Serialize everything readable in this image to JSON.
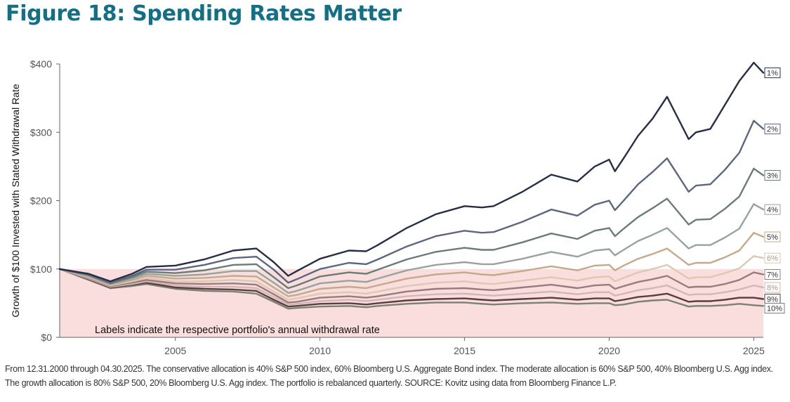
{
  "figure": {
    "title": "Figure 18: Spending Rates Matter",
    "footnote": "From 12.31.2000 through 04.30.2025. The conservative allocation is 40% S&P 500 index, 60% Bloomberg U.S. Aggregate Bond index. The moderate allocation is 60% S&P 500, 40% Bloomberg U.S. Agg index. The growth allocation is 80% S&P 500, 20% Bloomberg U.S. Agg index. The portfolio is rebalanced quarterly. SOURCE: Kovitz using data from Bloomberg Finance L.P."
  },
  "chart_data": {
    "type": "line",
    "title": "Figure 18: Spending Rates Matter",
    "xlabel": "",
    "ylabel": "Growth of $100 Invested with Stated Withdrawal Rate",
    "xlim": [
      2001.0,
      2025.33
    ],
    "ylim": [
      0,
      400
    ],
    "x_ticks": [
      "2005",
      "2010",
      "2015",
      "2020",
      "2025"
    ],
    "y_ticks": [
      "$0",
      "$100",
      "$200",
      "$300",
      "$400"
    ],
    "grid": false,
    "shaded_region": {
      "from": 0,
      "to": 100,
      "color": "#f9dedd"
    },
    "annotation": "Labels indicate the respective portfolio's annual withdrawal rate",
    "x": [
      2001.0,
      2002.0,
      2002.75,
      2003.5,
      2004.0,
      2005.0,
      2006.0,
      2007.0,
      2007.8,
      2008.4,
      2008.9,
      2009.2,
      2010.0,
      2011.0,
      2011.6,
      2012.0,
      2013.0,
      2014.0,
      2015.0,
      2015.6,
      2016.0,
      2017.0,
      2018.0,
      2018.9,
      2019.5,
      2020.0,
      2020.2,
      2020.5,
      2021.0,
      2021.5,
      2022.0,
      2022.75,
      2023.0,
      2023.5,
      2024.0,
      2024.5,
      2025.0,
      2025.33
    ],
    "series": [
      {
        "name": "1%",
        "color": "#252e45",
        "values": [
          100,
          93,
          82,
          93,
          103,
          105,
          114,
          127,
          130,
          110,
          90,
          97,
          115,
          127,
          126,
          135,
          160,
          180,
          192,
          190,
          192,
          213,
          238,
          228,
          250,
          260,
          243,
          262,
          295,
          320,
          352,
          290,
          300,
          305,
          340,
          375,
          402,
          387
        ]
      },
      {
        "name": "2%",
        "color": "#5c6680",
        "values": [
          100,
          92,
          80,
          90,
          99,
          99,
          106,
          116,
          118,
          99,
          80,
          85,
          100,
          109,
          107,
          114,
          133,
          148,
          156,
          153,
          154,
          169,
          187,
          178,
          194,
          200,
          186,
          200,
          224,
          242,
          262,
          213,
          222,
          224,
          245,
          270,
          317,
          305
        ]
      },
      {
        "name": "3%",
        "color": "#6b7c78",
        "values": [
          100,
          91,
          79,
          88,
          96,
          94,
          98,
          106,
          107,
          88,
          72,
          76,
          89,
          95,
          93,
          99,
          114,
          125,
          131,
          128,
          128,
          139,
          152,
          144,
          156,
          160,
          148,
          159,
          176,
          189,
          203,
          165,
          172,
          173,
          188,
          206,
          247,
          237
        ]
      },
      {
        "name": "4%",
        "color": "#97a49e",
        "values": [
          100,
          90,
          78,
          86,
          93,
          90,
          92,
          97,
          97,
          80,
          65,
          68,
          79,
          83,
          81,
          86,
          98,
          106,
          110,
          107,
          107,
          115,
          125,
          118,
          127,
          129,
          120,
          128,
          141,
          150,
          160,
          130,
          135,
          135,
          146,
          159,
          195,
          187
        ]
      },
      {
        "name": "5%",
        "color": "#c4aa8a",
        "values": [
          100,
          89,
          77,
          84,
          90,
          86,
          87,
          90,
          89,
          73,
          60,
          62,
          71,
          74,
          72,
          76,
          86,
          92,
          95,
          92,
          91,
          97,
          104,
          98,
          105,
          106,
          98,
          105,
          115,
          122,
          130,
          106,
          109,
          109,
          117,
          127,
          153,
          147
        ]
      },
      {
        "name": "6%",
        "color": "#dbc9b2",
        "values": [
          100,
          88,
          76,
          82,
          87,
          82,
          82,
          84,
          82,
          67,
          55,
          57,
          64,
          66,
          64,
          67,
          75,
          80,
          82,
          79,
          78,
          83,
          88,
          83,
          88,
          89,
          82,
          87,
          95,
          100,
          106,
          86,
          88,
          88,
          94,
          101,
          119,
          116
        ]
      },
      {
        "name": "7%",
        "color": "#9a7b7d",
        "values": [
          100,
          87,
          75,
          80,
          84,
          79,
          78,
          79,
          77,
          63,
          51,
          52,
          58,
          60,
          58,
          60,
          67,
          71,
          72,
          70,
          69,
          73,
          77,
          72,
          76,
          77,
          71,
          75,
          81,
          85,
          90,
          73,
          74,
          74,
          78,
          84,
          95,
          92
        ]
      },
      {
        "name": "8%",
        "color": "#d6b5b8",
        "values": [
          100,
          86,
          74,
          78,
          82,
          76,
          74,
          74,
          72,
          59,
          48,
          49,
          53,
          55,
          53,
          55,
          60,
          63,
          64,
          62,
          61,
          64,
          67,
          63,
          66,
          66,
          61,
          64,
          69,
          72,
          76,
          62,
          63,
          63,
          66,
          70,
          76,
          73
        ]
      },
      {
        "name": "9%",
        "color": "#5a3e3f",
        "values": [
          100,
          85,
          73,
          77,
          80,
          73,
          71,
          70,
          68,
          55,
          45,
          46,
          49,
          50,
          48,
          50,
          54,
          56,
          57,
          55,
          54,
          56,
          58,
          55,
          57,
          57,
          53,
          55,
          59,
          61,
          64,
          52,
          53,
          53,
          55,
          58,
          58,
          56
        ]
      },
      {
        "name": "10%",
        "color": "#7a8276",
        "values": [
          100,
          84,
          72,
          75,
          78,
          71,
          68,
          67,
          64,
          52,
          42,
          43,
          45,
          46,
          44,
          46,
          49,
          51,
          51,
          49,
          48,
          50,
          51,
          49,
          50,
          50,
          47,
          48,
          52,
          54,
          55,
          45,
          46,
          46,
          47,
          49,
          47,
          46
        ]
      }
    ]
  }
}
